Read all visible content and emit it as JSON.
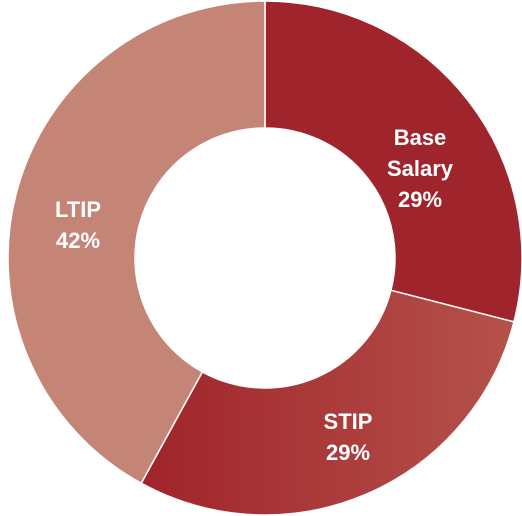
{
  "chart_data": {
    "type": "donut",
    "categories": [
      "Base Salary",
      "STIP",
      "LTIP"
    ],
    "values": [
      29,
      29,
      42
    ],
    "value_labels": [
      "29%",
      "29%",
      "42%"
    ],
    "colors": [
      "#a0242b",
      "#a62d31",
      "#c48577"
    ]
  }
}
